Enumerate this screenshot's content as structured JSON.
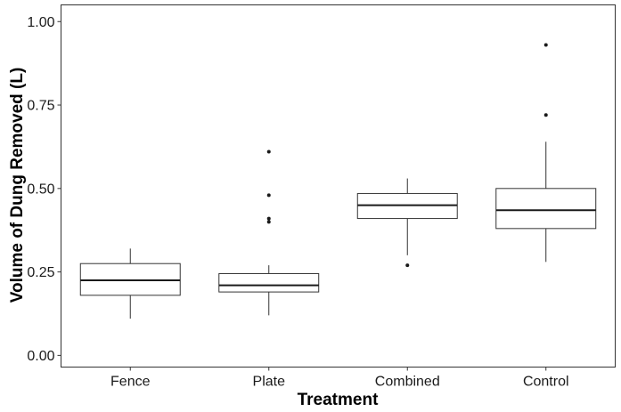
{
  "chart_data": {
    "type": "boxplot",
    "title": "",
    "xlabel": "Treatment",
    "ylabel": "Volume of Dung Removed (L)",
    "ylim": [
      -0.035,
      1.05
    ],
    "yticks": [
      0.0,
      0.25,
      0.5,
      0.75,
      1.0
    ],
    "ytick_labels": [
      "0.00",
      "0.25",
      "0.50",
      "0.75",
      "1.00"
    ],
    "grid": false,
    "legend": "none",
    "categories": [
      "Fence",
      "Plate",
      "Combined",
      "Control"
    ],
    "boxes": [
      {
        "category": "Fence",
        "whisker_low": 0.11,
        "q1": 0.18,
        "median": 0.225,
        "q3": 0.275,
        "whisker_high": 0.32,
        "outliers": []
      },
      {
        "category": "Plate",
        "whisker_low": 0.12,
        "q1": 0.19,
        "median": 0.21,
        "q3": 0.245,
        "whisker_high": 0.27,
        "outliers": [
          0.4,
          0.41,
          0.48,
          0.61
        ]
      },
      {
        "category": "Combined",
        "whisker_low": 0.3,
        "q1": 0.41,
        "median": 0.45,
        "q3": 0.485,
        "whisker_high": 0.53,
        "outliers": [
          0.27
        ]
      },
      {
        "category": "Control",
        "whisker_low": 0.28,
        "q1": 0.38,
        "median": 0.435,
        "q3": 0.5,
        "whisker_high": 0.64,
        "outliers": [
          0.72,
          0.93
        ]
      }
    ]
  }
}
